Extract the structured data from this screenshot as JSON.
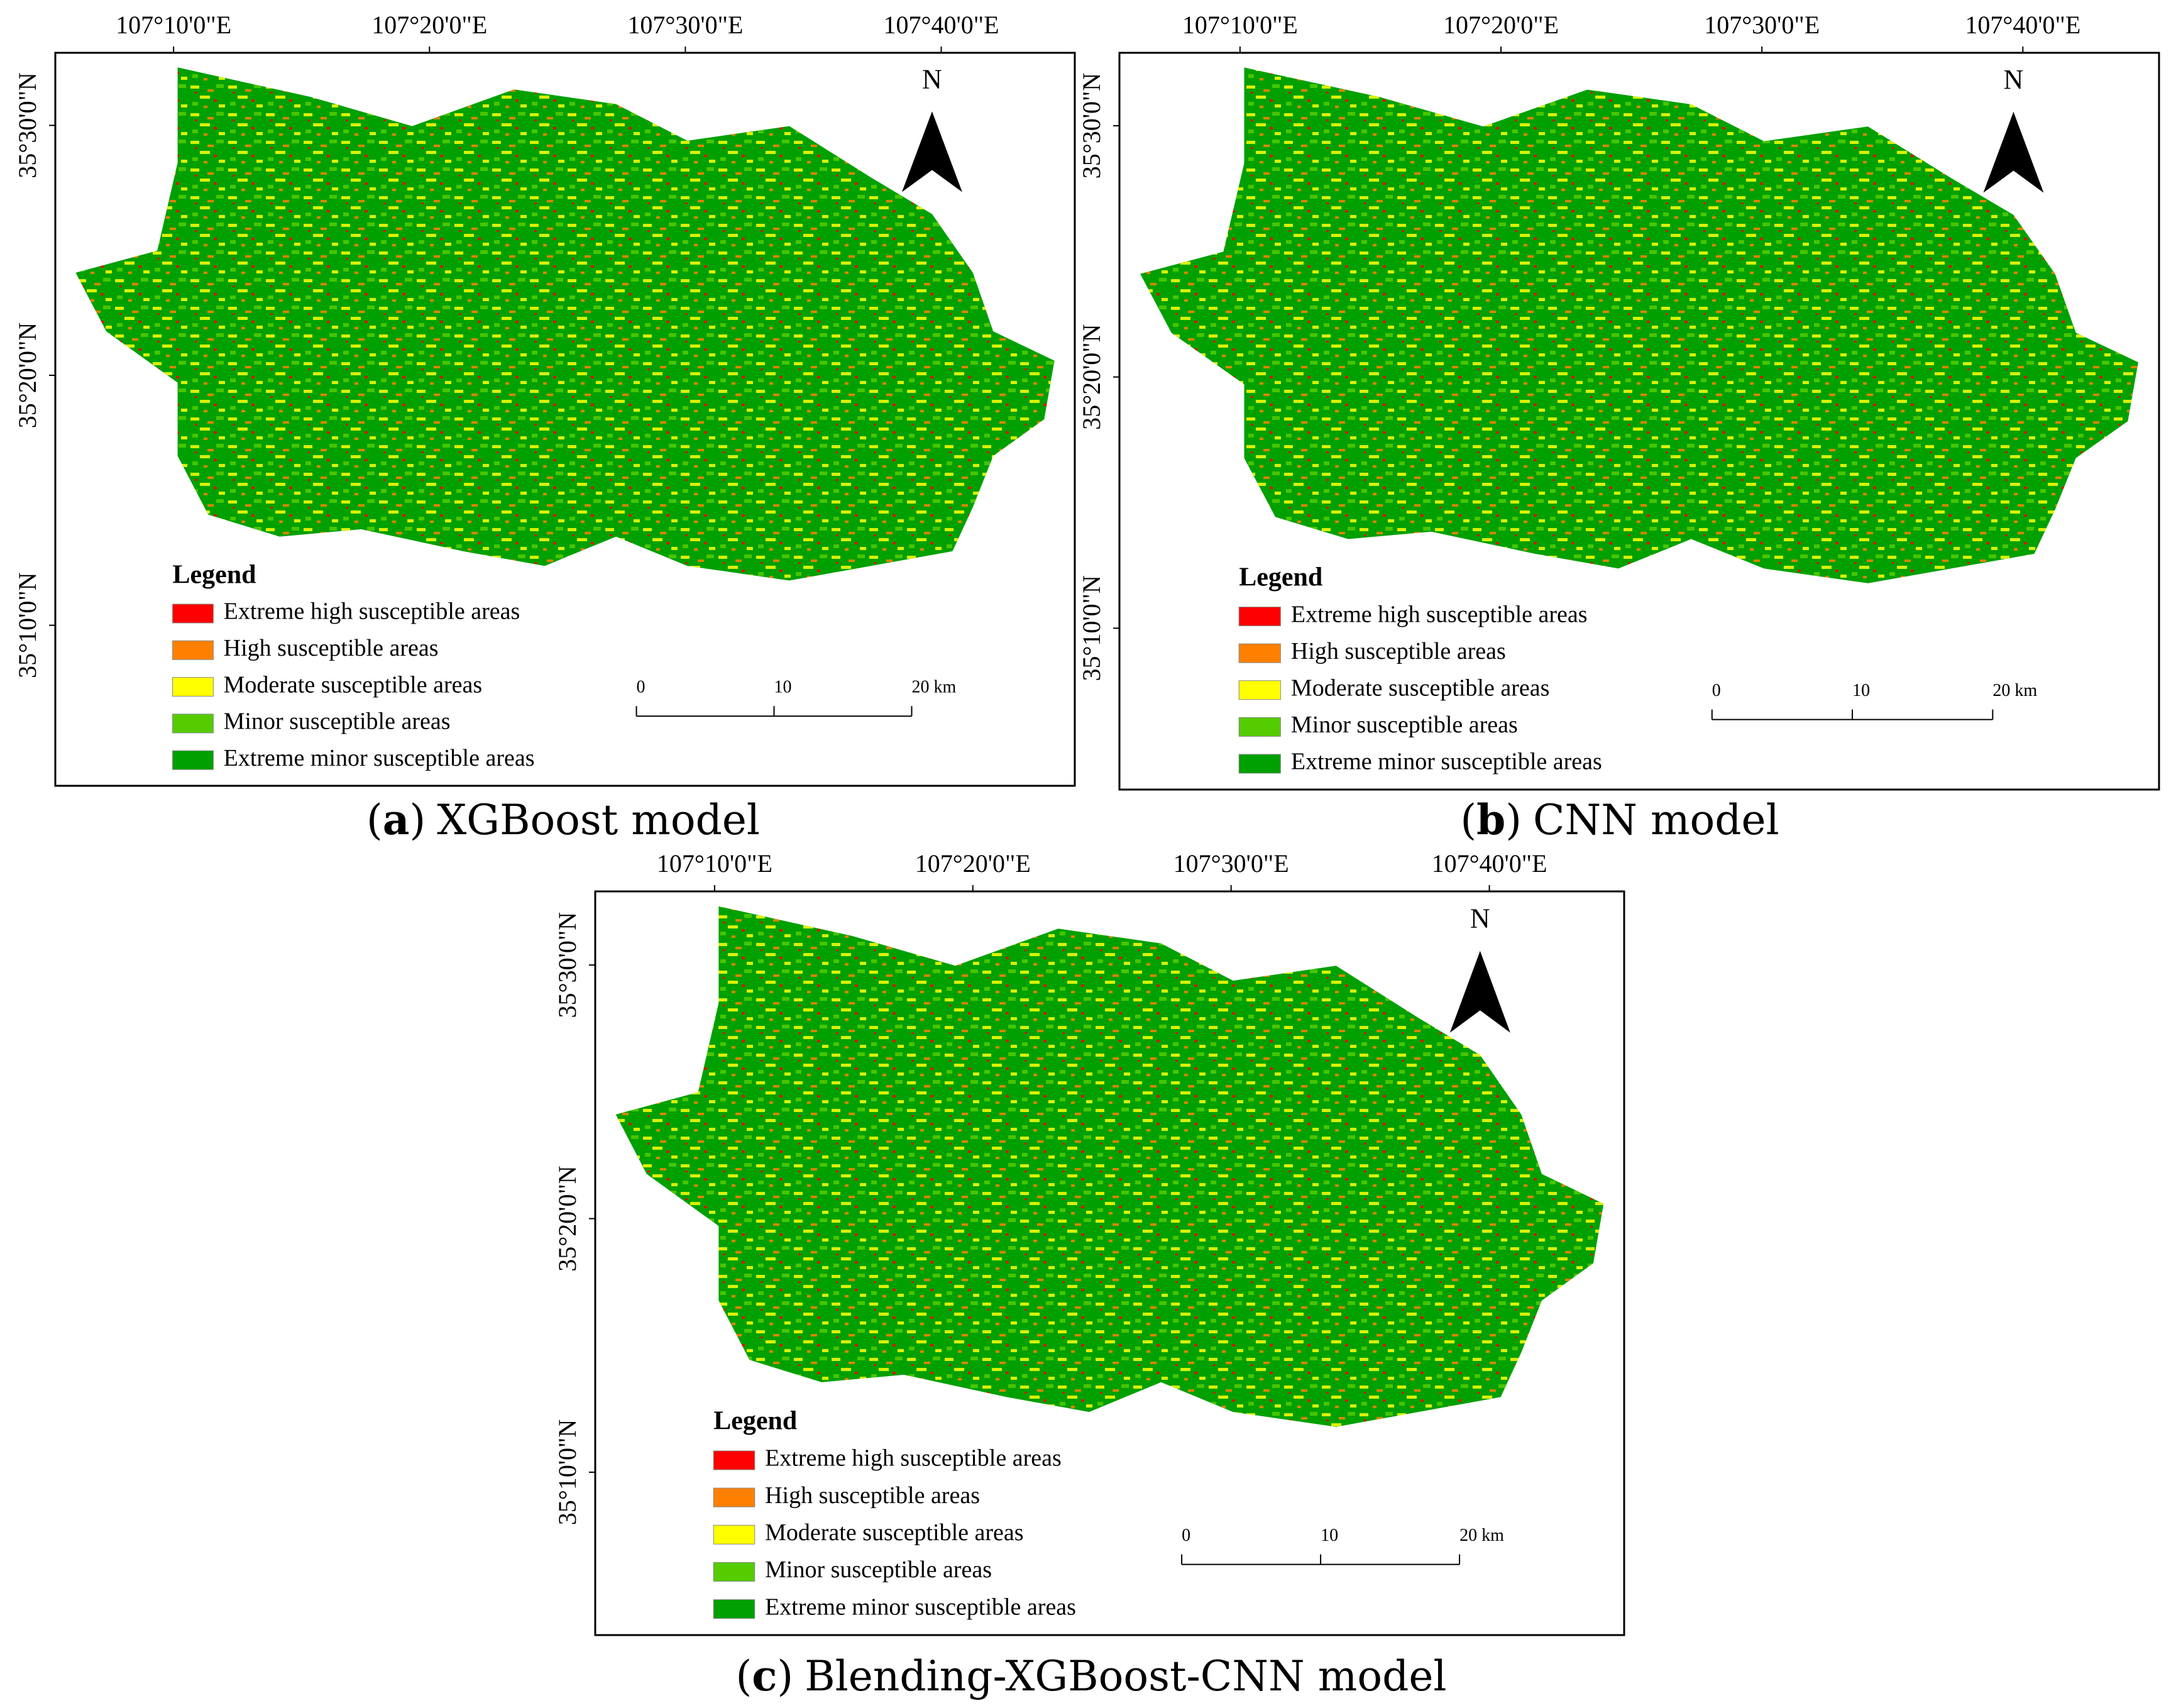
{
  "maps": {
    "longitude_labels": [
      "107°10'0\"E",
      "107°20'0\"E",
      "107°30'0\"E",
      "107°40'0\"E"
    ],
    "latitude_labels": [
      "35°30'0\"N",
      "35°20'0\"N",
      "35°10'0\"N"
    ],
    "north": "N",
    "legend": {
      "title": "Legend",
      "items": [
        {
          "label": "Extreme high susceptible areas",
          "color": "#ff0000"
        },
        {
          "label": "High susceptible areas",
          "color": "#ff8000"
        },
        {
          "label": "Moderate susceptible areas",
          "color": "#ffff00"
        },
        {
          "label": "Minor susceptible areas",
          "color": "#55cc00"
        },
        {
          "label": "Extreme minor susceptible areas",
          "color": "#00a000"
        }
      ]
    },
    "scale_bar": [
      "0",
      "10",
      "20 km"
    ],
    "caption_brackets": [
      "(",
      ")"
    ],
    "panels": [
      {
        "letter": "a",
        "name": "XGBoost model"
      },
      {
        "letter": "b",
        "name": "CNN model"
      },
      {
        "letter": "c",
        "name": "Blending-XGBoost-CNN model"
      }
    ]
  }
}
